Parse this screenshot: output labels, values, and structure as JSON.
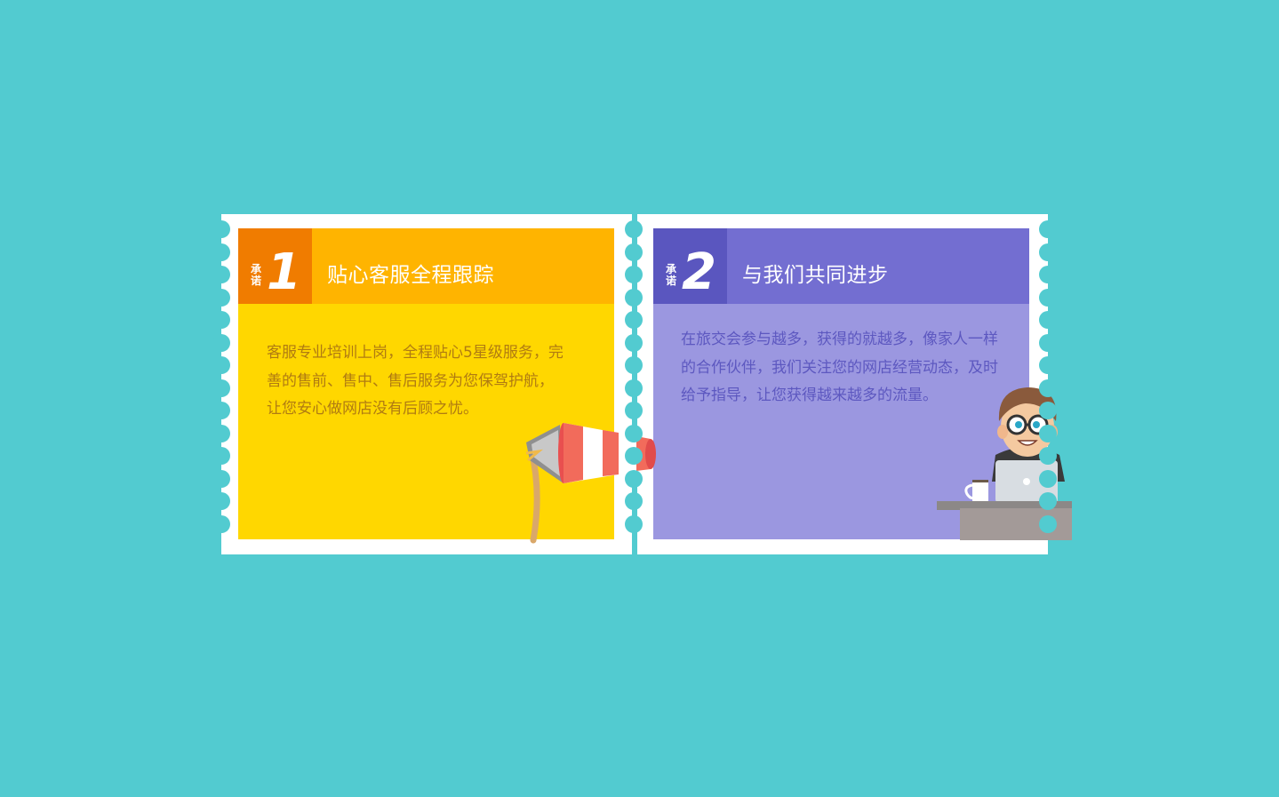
{
  "promises": [
    {
      "badge_label": "承诺",
      "number": "1",
      "title": "贴心客服全程跟踪",
      "body_lines": [
        "客服专业培训上岗，全程贴心5星级服务，完",
        "善的售前、售中、售后服务为您保驾护航，",
        "让您安心做网店没有后顾之忧。"
      ],
      "color_head": "#ffb400",
      "color_badge": "#f07c00",
      "color_body": "#ffd700",
      "icon": "windsock-icon"
    },
    {
      "badge_label": "承诺",
      "number": "2",
      "title": "与我们共同进步",
      "body_lines": [
        "在旅交会参与越多，获得的就越多，像家人一样",
        "的合作伙伴，我们关注您的网店经营动态，及时",
        "给予指导，让您获得越来越多的流量。"
      ],
      "color_head": "#736ed1",
      "color_badge": "#5a56bf",
      "color_body": "#9b97e0",
      "icon": "person-laptop-icon"
    }
  ],
  "background_color": "#52cbd0"
}
